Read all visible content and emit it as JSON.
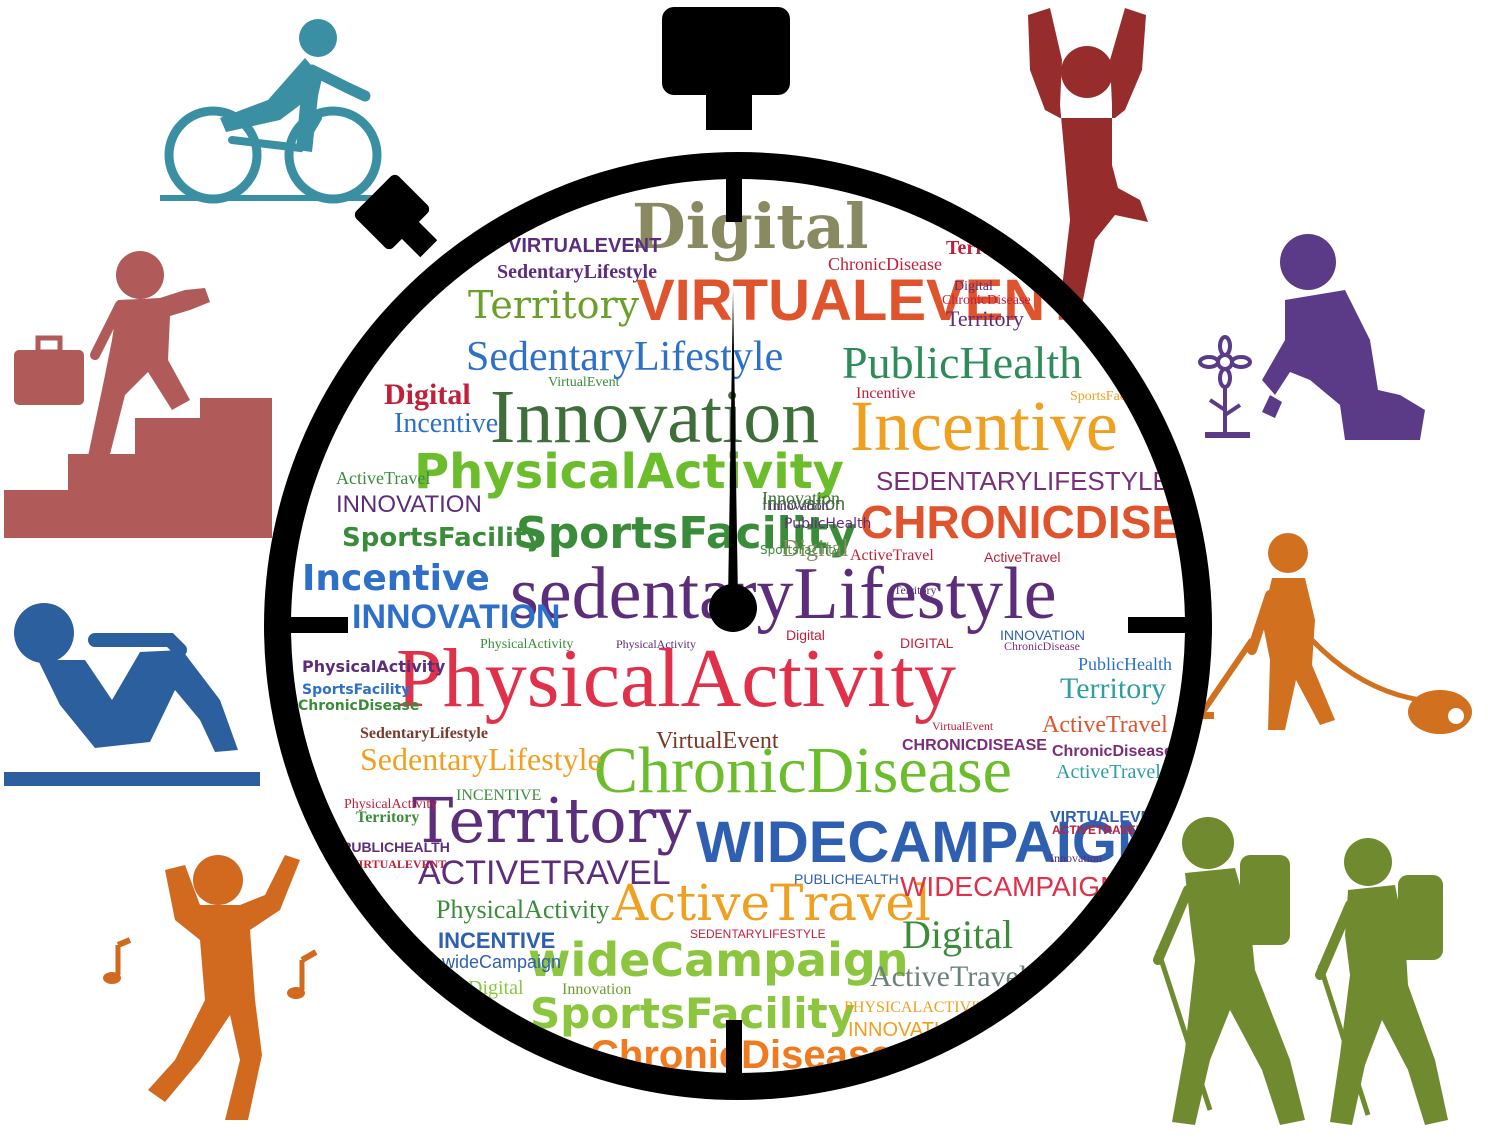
{
  "colors": {
    "frame": "#000000",
    "cyclist": "#3a8fa3",
    "stairs": "#b05a5a",
    "situp": "#2c5f9e",
    "dancer": "#d1691f",
    "yoga": "#962c2c",
    "gardener": "#5b3b87",
    "vacuum": "#d1711f",
    "hikers": "#6f8a2f"
  },
  "icons": [
    "bicycle-icon",
    "stairs-climber-icon",
    "situp-icon",
    "dancer-icon",
    "yoga-icon",
    "gardener-icon",
    "vacuum-icon",
    "hikers-icon"
  ],
  "cloud": {
    "w1": "Digital",
    "w2": "VIRTUALEVENT",
    "w3": "Territory",
    "w4": "SedentaryLifestyle",
    "w5": "PublicHealth",
    "w6": "Innovation",
    "w7": "Incentive",
    "w8": "PhysicalActivity",
    "w9": "SEDENTARYLIFESTYLE",
    "w10": "CHRONICDISEASE",
    "w11": "SportsFacility",
    "w12": "Incentive",
    "w13": "sedentaryLifestyle",
    "w14": "INNOVATION",
    "w15": "PhysicalActivity",
    "w16": "Territory",
    "w17": "ActiveTravel",
    "w18": "ChronicDisease",
    "w19": "SedentaryLifestyle",
    "w20": "Territory",
    "w21": "WIDECAMPAIGN",
    "w22": "ACTIVETRAVEL",
    "w23": "ActiveTravel",
    "w24": "WIDECAMPAIGN",
    "w25": "PhysicalActivity",
    "w26": "wideCampaign",
    "w27": "Digital",
    "w28": "ActiveTravel",
    "w29": "SportsFacility",
    "w30": "ChronicDisease",
    "w31": "INNOVATION",
    "w32": "SedentaryLifestyle",
    "w33": "VIRTUALEVENT",
    "w34": "Digital",
    "w35": "VirtualEvent",
    "w36": "ChronicDisease",
    "w37": "INCENTIVE",
    "w38": "wideCampaign",
    "w39": "Digital",
    "w40": "Innovation",
    "w41": "INNOVATION",
    "w42": "SportsFacility",
    "w43": "PhysicalActivity",
    "w44": "SportsFacility",
    "w45": "ChronicDisease",
    "w46": "Territory",
    "w47": "VirtualEvent",
    "w48": "Digital",
    "w49": "INCENTIVE",
    "w50": "Incentive",
    "w51": "ActiveTravel",
    "w52": "ChronicDisease",
    "w53": "PublicHealth",
    "w54": "CHRONICDISEASE",
    "w55": "Territory",
    "w56": "PUBLICHEALTH",
    "w57": "ActiveTravel",
    "w58": "Innovation",
    "w59": "SedentaryLifestyle",
    "w60": "VirtualEvent",
    "w61": "PhysicalActivity",
    "w62": "ChronicDisease",
    "w63": "DIGITAL",
    "w64": "VIRTUALEVENT",
    "w65": "ActiveTravel",
    "w66": "SportsFacility",
    "w67": "ChronicDisease",
    "w68": "Digital",
    "w69": "PublicHealth",
    "w70": "Innovation",
    "w71": "SportsFacility",
    "w72": "Incentive",
    "w73": "ACTIVETRAVEL",
    "w74": "PUBLICHEALTH",
    "w75": "Territory",
    "w76": "SEDENTARYLIFESTYLE",
    "w77": "PHYSICALACTIVITY",
    "w78": "Innovation",
    "w79": "Digital",
    "w80": "PhysicalActivity",
    "w81": "INNOVATION",
    "w82": "Territory",
    "w83": "VIRTUALEVENT",
    "w84": "ActiveTravel",
    "w85": "Innovation",
    "w86": "PhysicalActivity"
  }
}
